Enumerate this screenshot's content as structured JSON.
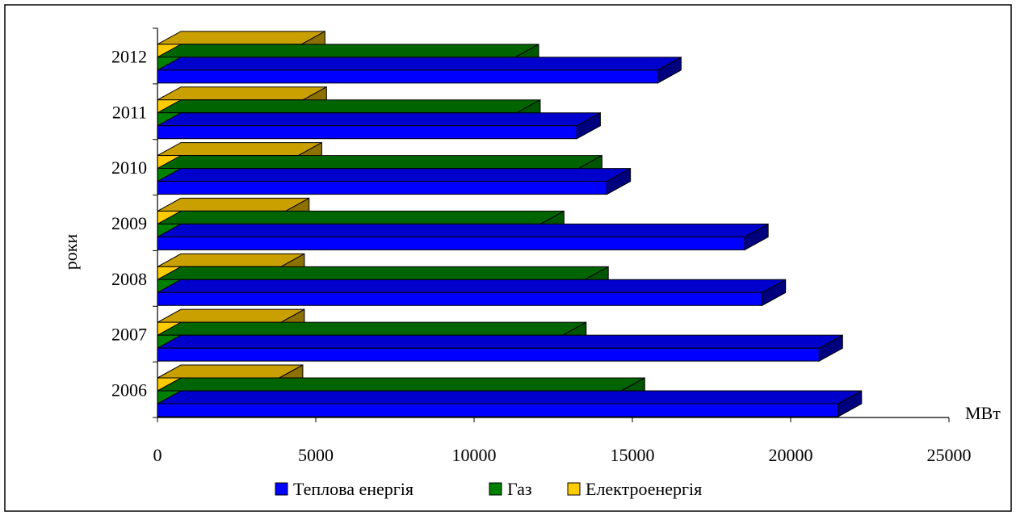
{
  "chart_data": {
    "type": "bar",
    "orientation": "horizontal",
    "style": "3d",
    "categories": [
      "2006",
      "2007",
      "2008",
      "2009",
      "2010",
      "2011",
      "2012"
    ],
    "series": [
      {
        "name": "Теплова енергія",
        "values": [
          21500,
          20900,
          19100,
          18550,
          14200,
          13250,
          15800
        ]
      },
      {
        "name": "Газ",
        "values": [
          14650,
          12800,
          13500,
          12100,
          13300,
          11350,
          11300
        ]
      },
      {
        "name": "Електроенергія",
        "values": [
          3850,
          3900,
          3900,
          4050,
          4450,
          4600,
          4550
        ]
      }
    ],
    "ylabel": "роки",
    "xunit": "МВт",
    "xlim": [
      0,
      25000
    ],
    "xticks": [
      "0",
      "5000",
      "10000",
      "15000",
      "20000",
      "25000"
    ],
    "grid": false,
    "legend_position": "bottom",
    "colors": {
      "Теплова енергія": "#0000ff",
      "Газ": "#008000",
      "Електроенергія": "#ffcc00"
    },
    "colors_dark": {
      "Теплова енергія": "#00007f",
      "Газ": "#005500",
      "Електроенергія": "#8c7000"
    },
    "colors_top": {
      "Теплова енергія": "#0000cc",
      "Газ": "#006400",
      "Електроенергія": "#c9a000"
    }
  }
}
